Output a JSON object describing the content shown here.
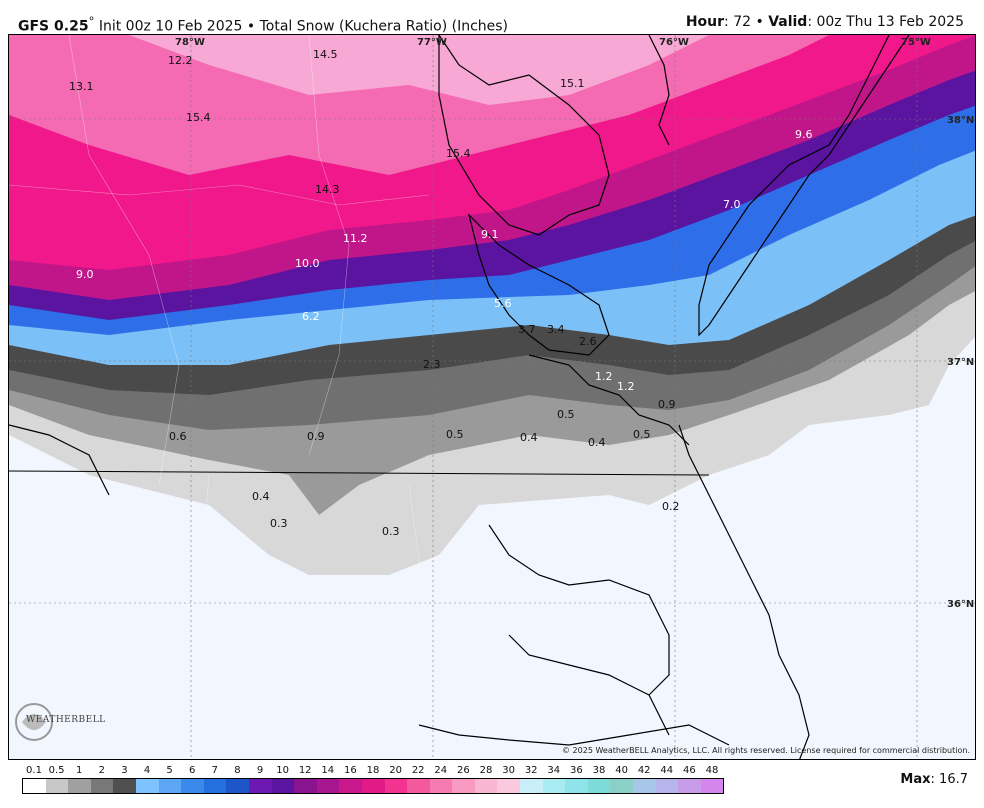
{
  "header": {
    "model": "GFS 0.25",
    "degree": "°",
    "init_text": "Init 00z 10 Feb 2025",
    "bullet": "•",
    "product": "Total Snow (Kuchera Ratio) (Inches)",
    "hour_label": "Hour",
    "hour_value": ": 72",
    "valid_label": "Valid",
    "valid_value": ": 00z Thu 13 Feb 2025"
  },
  "map": {
    "lon_labels": [
      "78°W",
      "77°W",
      "76°W",
      "75°W"
    ],
    "lat_labels": [
      "38°N",
      "37°N",
      "36°N"
    ],
    "value_labels": [
      "12.2",
      "14.5",
      "15.1",
      "13.1",
      "15.4",
      "15.4",
      "9.6",
      "14.3",
      "7.0",
      "11.2",
      "9.1",
      "10.0",
      "9.0",
      "5.6",
      "6.2",
      "3.7",
      "3.4",
      "2.6",
      "2.3",
      "1.2",
      "1.2",
      "0.5",
      "0.9",
      "0.6",
      "0.9",
      "0.5",
      "0.4",
      "0.4",
      "0.5",
      "0.4",
      "0.2",
      "0.3",
      "0.3"
    ],
    "colors": {
      "heavy_pink": "#f0188a",
      "pink": "#f46bb4",
      "light_pink": "#f8a8d4",
      "magenta": "#c0168a",
      "purple": "#5a14a0",
      "blue": "#2e6ee8",
      "light_blue": "#7cc0f8",
      "dark_gray": "#4a4a4a",
      "gray": "#9a9a9a",
      "light_gray": "#d8d8d8",
      "background": "#f2f6fe"
    }
  },
  "copyright": "© 2025 WeatherBELL Analytics, LLC. All rights reserved. License required for commercial distribution.",
  "logo_text": "WEATHERBELL",
  "legend": {
    "ticks": [
      "0.1",
      "0.5",
      "1",
      "2",
      "3",
      "4",
      "5",
      "6",
      "7",
      "8",
      "9",
      "10",
      "12",
      "14",
      "16",
      "18",
      "20",
      "22",
      "24",
      "26",
      "28",
      "30",
      "32",
      "34",
      "36",
      "38",
      "40",
      "42",
      "44",
      "46",
      "48"
    ],
    "colors": [
      "#ffffff",
      "#c8c8c8",
      "#a0a0a0",
      "#787878",
      "#505050",
      "#7ec2ff",
      "#5ca6f5",
      "#3b8aeb",
      "#2470de",
      "#1e56c9",
      "#6e18b4",
      "#5a14a0",
      "#8a1490",
      "#a81690",
      "#c8188c",
      "#e21a88",
      "#f2338f",
      "#f35a9e",
      "#f57bb0",
      "#f89ac2",
      "#f9b6d2",
      "#fbc9dd",
      "#c8eef8",
      "#a8ecf2",
      "#8ee4ea",
      "#7edcd8",
      "#8ad0c8",
      "#a8c6e8",
      "#b8b4ec",
      "#c89ce8",
      "#d486ec"
    ],
    "max_label": "Max",
    "max_value": ": 16.7"
  }
}
